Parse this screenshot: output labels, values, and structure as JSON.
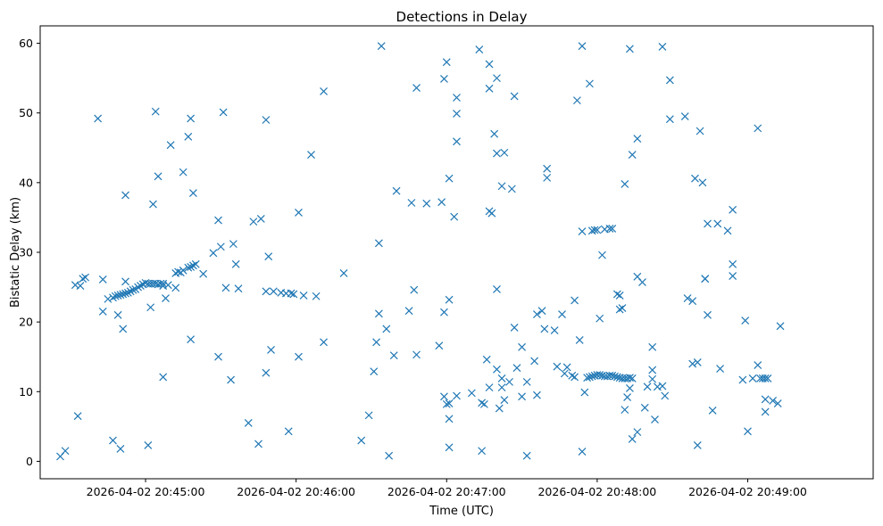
{
  "chart_data": {
    "type": "scatter",
    "title": "Detections in Delay",
    "xlabel": "Time (UTC)",
    "ylabel": "Bistatic Delay (km)",
    "marker": "x",
    "color": "#1f77b4",
    "x_units": "seconds after 2026-04-02 20:45:00",
    "xlim": [
      -42,
      290
    ],
    "ylim": [
      -2.5,
      62.5
    ],
    "x_ticks": [
      {
        "value": 0,
        "label": "2026-04-02 20:45:00"
      },
      {
        "value": 60,
        "label": "2026-04-02 20:46:00"
      },
      {
        "value": 120,
        "label": "2026-04-02 20:47:00"
      },
      {
        "value": 180,
        "label": "2026-04-02 20:48:00"
      },
      {
        "value": 240,
        "label": "2026-04-02 20:49:00"
      }
    ],
    "y_ticks": [
      0,
      10,
      20,
      30,
      40,
      50,
      60
    ],
    "points": [
      [
        -34,
        0.7
      ],
      [
        -32,
        1.5
      ],
      [
        -28,
        25.3
      ],
      [
        -27,
        6.5
      ],
      [
        -26,
        25.2
      ],
      [
        -25,
        26.2
      ],
      [
        -24,
        26.4
      ],
      [
        -19,
        49.2
      ],
      [
        -17,
        21.5
      ],
      [
        -17,
        26.1
      ],
      [
        -15,
        23.3
      ],
      [
        -13,
        23.5
      ],
      [
        -12,
        23.7
      ],
      [
        -11,
        23.8
      ],
      [
        -10,
        23.9
      ],
      [
        -9,
        24
      ],
      [
        -8,
        24.1
      ],
      [
        -7,
        24.2
      ],
      [
        -6,
        24.4
      ],
      [
        -5,
        24.6
      ],
      [
        -4,
        24.7
      ],
      [
        -3,
        25
      ],
      [
        -2,
        25.2
      ],
      [
        -1,
        25.4
      ],
      [
        0,
        25.6
      ],
      [
        1,
        25.5
      ],
      [
        2,
        25.5
      ],
      [
        3,
        25.5
      ],
      [
        4,
        25.5
      ],
      [
        5,
        25.4
      ],
      [
        6,
        25.5
      ],
      [
        7,
        25.5
      ],
      [
        -13,
        3
      ],
      [
        -11,
        21
      ],
      [
        -10,
        1.8
      ],
      [
        -9,
        19
      ],
      [
        -8,
        38.2
      ],
      [
        -8,
        25.8
      ],
      [
        1,
        2.3
      ],
      [
        2,
        22.1
      ],
      [
        3,
        36.9
      ],
      [
        4,
        50.2
      ],
      [
        5,
        40.9
      ],
      [
        7,
        12.1
      ],
      [
        7,
        25.2
      ],
      [
        8,
        23.4
      ],
      [
        9,
        25.3
      ],
      [
        10,
        45.4
      ],
      [
        12,
        27
      ],
      [
        12,
        24.9
      ],
      [
        13,
        27.2
      ],
      [
        14,
        27.1
      ],
      [
        15,
        27.4
      ],
      [
        15,
        41.5
      ],
      [
        17,
        46.6
      ],
      [
        17,
        27.8
      ],
      [
        18,
        27.9
      ],
      [
        18,
        49.2
      ],
      [
        19,
        28.1
      ],
      [
        19,
        38.5
      ],
      [
        20,
        28.3
      ],
      [
        18,
        17.5
      ],
      [
        23,
        26.9
      ],
      [
        27,
        29.9
      ],
      [
        29,
        15
      ],
      [
        29,
        34.6
      ],
      [
        30,
        30.8
      ],
      [
        31,
        50.1
      ],
      [
        32,
        24.9
      ],
      [
        34,
        11.7
      ],
      [
        35,
        31.2
      ],
      [
        36,
        28.3
      ],
      [
        37,
        24.8
      ],
      [
        41,
        5.5
      ],
      [
        43,
        34.4
      ],
      [
        45,
        2.5
      ],
      [
        46,
        34.8
      ],
      [
        48,
        12.7
      ],
      [
        48,
        49
      ],
      [
        48,
        24.4
      ],
      [
        49,
        29.4
      ],
      [
        50,
        16
      ],
      [
        51,
        24.4
      ],
      [
        54,
        24.2
      ],
      [
        56,
        24.1
      ],
      [
        57,
        4.3
      ],
      [
        58,
        24.1
      ],
      [
        59,
        24
      ],
      [
        61,
        15
      ],
      [
        61,
        35.7
      ],
      [
        63,
        23.8
      ],
      [
        66,
        44
      ],
      [
        68,
        23.7
      ],
      [
        71,
        17.1
      ],
      [
        71,
        53.1
      ],
      [
        79,
        27
      ],
      [
        86,
        3
      ],
      [
        89,
        6.6
      ],
      [
        91,
        12.9
      ],
      [
        92,
        17.1
      ],
      [
        93,
        21.2
      ],
      [
        93,
        31.3
      ],
      [
        94,
        59.6
      ],
      [
        96,
        19
      ],
      [
        97,
        0.8
      ],
      [
        99,
        15.2
      ],
      [
        100,
        38.8
      ],
      [
        105,
        21.6
      ],
      [
        106,
        37.1
      ],
      [
        107,
        24.6
      ],
      [
        108,
        15.3
      ],
      [
        108,
        53.6
      ],
      [
        112,
        37
      ],
      [
        117,
        16.6
      ],
      [
        118,
        37.2
      ],
      [
        119,
        9.3
      ],
      [
        119,
        21.4
      ],
      [
        119,
        54.9
      ],
      [
        120,
        8.2
      ],
      [
        120,
        57.3
      ],
      [
        121,
        2
      ],
      [
        121,
        6.1
      ],
      [
        121,
        8.3
      ],
      [
        121,
        23.2
      ],
      [
        121,
        40.6
      ],
      [
        123,
        35.1
      ],
      [
        124,
        52.2
      ],
      [
        124,
        49.9
      ],
      [
        124,
        45.9
      ],
      [
        124,
        9.4
      ],
      [
        130,
        9.8
      ],
      [
        133,
        59.1
      ],
      [
        134,
        8.4
      ],
      [
        134,
        1.5
      ],
      [
        135,
        8.2
      ],
      [
        136,
        14.6
      ],
      [
        137,
        35.9
      ],
      [
        137,
        10.6
      ],
      [
        137,
        53.5
      ],
      [
        137,
        57
      ],
      [
        138,
        35.6
      ],
      [
        139,
        47
      ],
      [
        140,
        13.2
      ],
      [
        140,
        24.7
      ],
      [
        140,
        44.2
      ],
      [
        140,
        55
      ],
      [
        141,
        7.6
      ],
      [
        142,
        10.6
      ],
      [
        142,
        11.9
      ],
      [
        142,
        39.5
      ],
      [
        143,
        8.8
      ],
      [
        143,
        44.3
      ],
      [
        145,
        11.4
      ],
      [
        146,
        39.1
      ],
      [
        147,
        52.4
      ],
      [
        147,
        19.2
      ],
      [
        148,
        13.4
      ],
      [
        150,
        16.4
      ],
      [
        150,
        9.3
      ],
      [
        152,
        0.8
      ],
      [
        152,
        11.4
      ],
      [
        155,
        14.4
      ],
      [
        156,
        21.1
      ],
      [
        156,
        9.5
      ],
      [
        158,
        21.6
      ],
      [
        159,
        19
      ],
      [
        160,
        42
      ],
      [
        160,
        40.7
      ],
      [
        163,
        18.8
      ],
      [
        164,
        13.6
      ],
      [
        166,
        21.1
      ],
      [
        167,
        12.6
      ],
      [
        168,
        13.5
      ],
      [
        170,
        12.3
      ],
      [
        171,
        12.1
      ],
      [
        171,
        23.1
      ],
      [
        172,
        51.8
      ],
      [
        173,
        17.4
      ],
      [
        174,
        59.6
      ],
      [
        174,
        33
      ],
      [
        174,
        1.4
      ],
      [
        175,
        9.9
      ],
      [
        176,
        12
      ],
      [
        177,
        12.1
      ],
      [
        178,
        12.2
      ],
      [
        179,
        12.3
      ],
      [
        180,
        12.4
      ],
      [
        181,
        12.4
      ],
      [
        182,
        12.3
      ],
      [
        183,
        12.2
      ],
      [
        184,
        12.2
      ],
      [
        185,
        12.3
      ],
      [
        186,
        12.3
      ],
      [
        187,
        12.2
      ],
      [
        188,
        12.1
      ],
      [
        189,
        12
      ],
      [
        190,
        11.9
      ],
      [
        191,
        11.9
      ],
      [
        192,
        11.9
      ],
      [
        193,
        12
      ],
      [
        194,
        11.9
      ],
      [
        177,
        54.2
      ],
      [
        178,
        33.1
      ],
      [
        179,
        33.2
      ],
      [
        180,
        33.2
      ],
      [
        181,
        20.5
      ],
      [
        182,
        29.6
      ],
      [
        183,
        33.3
      ],
      [
        185,
        33.4
      ],
      [
        186,
        33.4
      ],
      [
        188,
        24
      ],
      [
        189,
        23.8
      ],
      [
        189,
        21.8
      ],
      [
        190,
        22
      ],
      [
        191,
        39.8
      ],
      [
        191,
        7.4
      ],
      [
        192,
        9.2
      ],
      [
        193,
        10.5
      ],
      [
        193,
        59.2
      ],
      [
        194,
        3.2
      ],
      [
        194,
        44
      ],
      [
        196,
        26.5
      ],
      [
        196,
        46.3
      ],
      [
        196,
        4.2
      ],
      [
        198,
        25.7
      ],
      [
        199,
        7.7
      ],
      [
        200,
        10.7
      ],
      [
        202,
        13.1
      ],
      [
        202,
        16.4
      ],
      [
        202,
        11.8
      ],
      [
        203,
        6
      ],
      [
        204,
        10.7
      ],
      [
        206,
        59.5
      ],
      [
        206,
        10.8
      ],
      [
        207,
        9.4
      ],
      [
        209,
        49.1
      ],
      [
        209,
        54.7
      ],
      [
        215,
        49.5
      ],
      [
        216,
        23.4
      ],
      [
        218,
        23
      ],
      [
        218,
        14
      ],
      [
        219,
        40.6
      ],
      [
        220,
        14.2
      ],
      [
        220,
        2.3
      ],
      [
        221,
        47.4
      ],
      [
        222,
        40
      ],
      [
        223,
        26.2
      ],
      [
        223,
        26.2
      ],
      [
        224,
        21
      ],
      [
        224,
        34.1
      ],
      [
        226,
        7.3
      ],
      [
        228,
        34.1
      ],
      [
        229,
        13.3
      ],
      [
        232,
        33.1
      ],
      [
        234,
        36.1
      ],
      [
        234,
        28.3
      ],
      [
        234,
        26.6
      ],
      [
        238,
        11.7
      ],
      [
        239,
        20.2
      ],
      [
        240,
        4.3
      ],
      [
        242,
        11.9
      ],
      [
        244,
        47.8
      ],
      [
        244,
        13.8
      ],
      [
        245,
        11.9
      ],
      [
        246,
        11.9
      ],
      [
        247,
        11.9
      ],
      [
        247,
        8.9
      ],
      [
        247,
        7.1
      ],
      [
        248,
        11.9
      ],
      [
        250,
        8.7
      ],
      [
        252,
        8.3
      ],
      [
        253,
        19.4
      ]
    ]
  }
}
